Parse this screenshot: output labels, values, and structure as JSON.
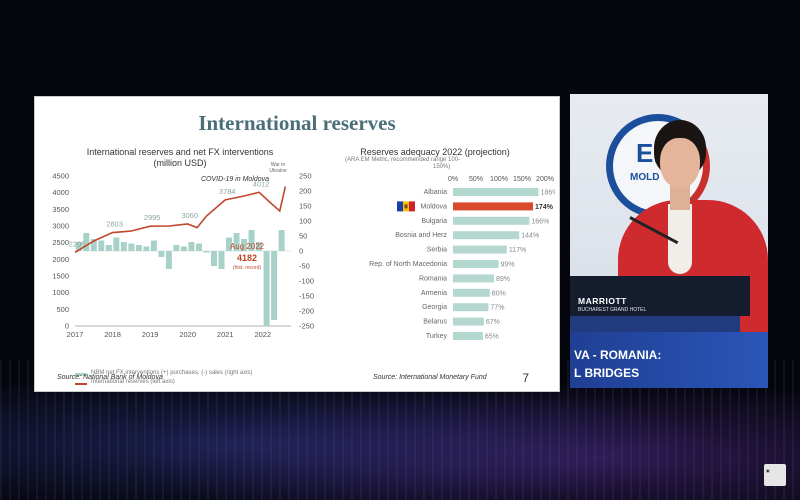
{
  "slide": {
    "title": "International reserves",
    "page_number": "7",
    "left_source": "Source: National Bank of Moldova",
    "right_source": "Source: International Monetary Fund"
  },
  "left_chart": {
    "title_line1": "International reserves and net FX interventions",
    "title_line2": "(million USD)",
    "left_axis": [
      "4500",
      "4000",
      "3500",
      "3000",
      "2500",
      "2000",
      "1500",
      "1000",
      "500",
      "0"
    ],
    "right_axis": [
      "250",
      "200",
      "150",
      "100",
      "50",
      "0",
      "-50",
      "-100",
      "-150",
      "-200",
      "-250"
    ],
    "years": [
      "2017",
      "2018",
      "2019",
      "2020",
      "2021",
      "2022"
    ],
    "point_labels": [
      "2206",
      "2803",
      "2995",
      "3060",
      "3784",
      "4012"
    ],
    "covid_label": "COVID-19 in Moldova",
    "war_label_1": "War in",
    "war_label_2": "Ukraine",
    "aug_label": "Aug 2022",
    "aug_value": "4182",
    "aug_note": "(hist. record)",
    "legend_bars": "NBM net FX interventions (+) purchases, (-) sales (right axis)",
    "legend_line": "International reserves (left axis)"
  },
  "right_chart": {
    "title": "Reserves adequacy 2022 (projection)",
    "subtitle_1": "(ARA EM Metric, recommended range 100-",
    "subtitle_2": "150%)",
    "axis": [
      "0%",
      "50%",
      "100%",
      "150%",
      "200%"
    ],
    "countries": [
      {
        "name": "Albania",
        "label": "186%"
      },
      {
        "name": "Moldova",
        "label": "174%"
      },
      {
        "name": "Bulgaria",
        "label": "166%"
      },
      {
        "name": "Bosnia and Herz",
        "label": "144%"
      },
      {
        "name": "Serbia",
        "label": "117%"
      },
      {
        "name": "Rep. of North Macedonia",
        "label": "99%"
      },
      {
        "name": "Romania",
        "label": "89%"
      },
      {
        "name": "Armenia",
        "label": "80%"
      },
      {
        "name": "Georgia",
        "label": "77%"
      },
      {
        "name": "Belarus",
        "label": "67%"
      },
      {
        "name": "Turkey",
        "label": "65%"
      }
    ]
  },
  "chart_data": [
    {
      "type": "line",
      "title": "International reserves and net FX interventions (million USD)",
      "x": [
        2017.0,
        2017.5,
        2018.0,
        2018.5,
        2019.0,
        2019.5,
        2020.0,
        2020.25,
        2020.5,
        2021.0,
        2021.5,
        2021.9,
        2022.2,
        2022.45,
        2022.6
      ],
      "series": [
        {
          "name": "International reserves (left axis)",
          "values": [
            2206,
            2550,
            2803,
            2850,
            2995,
            3000,
            3060,
            2950,
            3300,
            3784,
            3900,
            4012,
            3700,
            3450,
            4182
          ]
        }
      ],
      "ylim": [
        0,
        4500
      ]
    },
    {
      "type": "bar",
      "title": "NBM net FX interventions (right axis)",
      "x": [
        2017.1,
        2017.3,
        2017.5,
        2017.7,
        2017.9,
        2018.1,
        2018.3,
        2018.5,
        2018.7,
        2018.9,
        2019.1,
        2019.3,
        2019.5,
        2019.7,
        2019.9,
        2020.1,
        2020.3,
        2020.5,
        2020.7,
        2020.9,
        2021.1,
        2021.3,
        2021.5,
        2021.7,
        2021.9,
        2022.1,
        2022.3,
        2022.5
      ],
      "values": [
        30,
        60,
        40,
        35,
        20,
        45,
        30,
        25,
        20,
        15,
        35,
        -20,
        -60,
        20,
        15,
        30,
        25,
        -5,
        -50,
        -60,
        45,
        60,
        40,
        70,
        30,
        -250,
        -230,
        70
      ],
      "ylim": [
        -250,
        250
      ]
    },
    {
      "type": "bar",
      "title": "Reserves adequacy 2022 (projection)",
      "categories": [
        "Albania",
        "Moldova",
        "Bulgaria",
        "Bosnia and Herz",
        "Serbia",
        "Rep. of North Macedonia",
        "Romania",
        "Armenia",
        "Georgia",
        "Belarus",
        "Turkey"
      ],
      "values": [
        186,
        174,
        166,
        144,
        117,
        99,
        89,
        80,
        77,
        67,
        65
      ],
      "xlim": [
        0,
        200
      ]
    }
  ],
  "video": {
    "backdrop_logo": "EB",
    "backdrop_sub": "MOLD",
    "podium_name": "MARRIOTT",
    "podium_sub": "BUCHAREST GRAND HOTEL",
    "banner_line1": "VA - ROMANIA:",
    "banner_line2": "L BRIDGES"
  }
}
